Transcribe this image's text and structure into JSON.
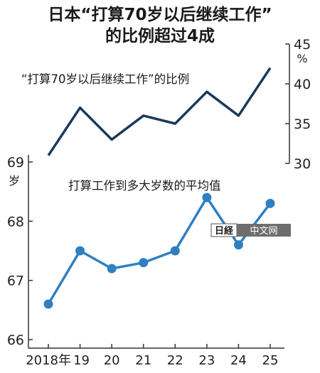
{
  "title": {
    "line1": "日本“打算70岁以后继续工作”",
    "line2": "的比例超过4成"
  },
  "watermark": {
    "logo_text": "日経",
    "label": "中文网"
  },
  "colors": {
    "top_series": "#1b3a5c",
    "bottom_series": "#2f7fc1",
    "marker": "#2f7fc1",
    "axis": "#333333",
    "watermark_bg": "#6e6e6e"
  },
  "chart_data": [
    {
      "type": "line",
      "x": [
        "2018年",
        "19",
        "20",
        "21",
        "22",
        "23",
        "24",
        "25"
      ],
      "series": [
        {
          "name": "“打算70岁以后继续工作”的比例",
          "values": [
            31,
            37,
            33,
            36,
            35,
            39,
            36,
            42
          ]
        }
      ],
      "y_axis": {
        "position": "right",
        "unit": "%",
        "ylim": [
          30,
          45
        ],
        "ticks": [
          "30",
          "35",
          "40",
          "45"
        ]
      },
      "markers": false
    },
    {
      "type": "line",
      "x": [
        "2018年",
        "19",
        "20",
        "21",
        "22",
        "23",
        "24",
        "25"
      ],
      "series": [
        {
          "name": "打算工作到多大岁数的平均值",
          "values": [
            66.6,
            67.5,
            67.2,
            67.3,
            67.5,
            68.4,
            67.6,
            68.3
          ]
        }
      ],
      "y_axis": {
        "position": "left",
        "unit": "岁",
        "ylim": [
          66,
          69
        ],
        "ticks": [
          "66",
          "67",
          "68",
          "69"
        ]
      },
      "markers": true
    }
  ]
}
